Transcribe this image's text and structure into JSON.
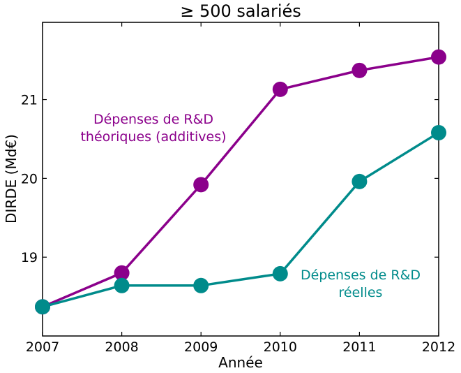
{
  "chart_data": {
    "type": "line",
    "title": "≥ 500 salariés",
    "xlabel": "Année",
    "ylabel": "DIRDE (Md€)",
    "x": [
      2007,
      2008,
      2009,
      2010,
      2011,
      2012
    ],
    "xlim": [
      2007,
      2012
    ],
    "ylim": [
      18.0,
      21.98
    ],
    "x_ticks": [
      "2007",
      "2008",
      "2009",
      "2010",
      "2011",
      "2012"
    ],
    "y_ticks": [
      "19",
      "20",
      "21"
    ],
    "grid": false,
    "series": [
      {
        "label_lines": [
          "Dépenses de R&D",
          "théoriques (additives)"
        ],
        "color": "#8b008b",
        "values": [
          18.37,
          18.8,
          19.92,
          21.13,
          21.37,
          21.54
        ]
      },
      {
        "label_lines": [
          "Dépenses de R&D",
          "réelles"
        ],
        "color": "#008b8b",
        "values": [
          18.37,
          18.64,
          18.64,
          18.79,
          19.96,
          20.58
        ]
      }
    ]
  }
}
